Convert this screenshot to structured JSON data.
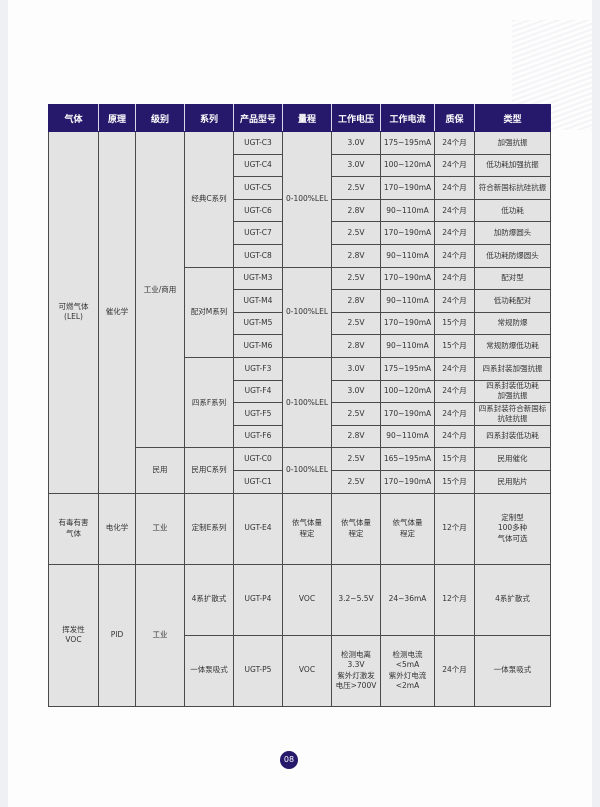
{
  "header": [
    "气体",
    "原理",
    "级别",
    "系列",
    "产品型号",
    "量程",
    "工作电压",
    "工作电流",
    "质保",
    "类型"
  ],
  "rows": [
    {
      "h": "r",
      "cells": [
        {
          "t": "可燃气体\n(LEL)",
          "rs": 16
        },
        {
          "t": "催化学",
          "rs": 16
        },
        {
          "t": "工业/商用",
          "rs": 14
        },
        {
          "t": "经典C系列",
          "rs": 6
        },
        {
          "t": "UGT-C3"
        },
        {
          "t": "0-100%LEL",
          "rs": 6
        },
        {
          "t": "3.0V"
        },
        {
          "t": "175~195mA"
        },
        {
          "t": "24个月"
        },
        {
          "t": "加强抗振"
        }
      ]
    },
    {
      "h": "r",
      "cells": [
        {
          "t": "UGT-C4"
        },
        {
          "t": "3.0V"
        },
        {
          "t": "100~120mA"
        },
        {
          "t": "24个月"
        },
        {
          "t": "低功耗加强抗振"
        }
      ]
    },
    {
      "h": "r",
      "cells": [
        {
          "t": "UGT-C5"
        },
        {
          "t": "2.5V"
        },
        {
          "t": "170~190mA"
        },
        {
          "t": "24个月"
        },
        {
          "t": "符合新国标抗硅抗振"
        }
      ]
    },
    {
      "h": "r",
      "cells": [
        {
          "t": "UGT-C6"
        },
        {
          "t": "2.8V"
        },
        {
          "t": "90~110mA"
        },
        {
          "t": "24个月"
        },
        {
          "t": "低功耗"
        }
      ]
    },
    {
      "h": "r",
      "cells": [
        {
          "t": "UGT-C7"
        },
        {
          "t": "2.5V"
        },
        {
          "t": "170~190mA"
        },
        {
          "t": "24个月"
        },
        {
          "t": "加防爆圆头"
        }
      ]
    },
    {
      "h": "r",
      "cells": [
        {
          "t": "UGT-C8"
        },
        {
          "t": "2.8V"
        },
        {
          "t": "90~110mA"
        },
        {
          "t": "24个月"
        },
        {
          "t": "低功耗防爆圆头"
        }
      ]
    },
    {
      "h": "r",
      "cells": [
        {
          "t": "配对M系列",
          "rs": 4
        },
        {
          "t": "UGT-M3"
        },
        {
          "t": "0-100%LEL",
          "rs": 4
        },
        {
          "t": "2.5V"
        },
        {
          "t": "170~190mA"
        },
        {
          "t": "24个月"
        },
        {
          "t": "配对型"
        }
      ]
    },
    {
      "h": "r",
      "cells": [
        {
          "t": "UGT-M4"
        },
        {
          "t": "2.8V"
        },
        {
          "t": "90~110mA"
        },
        {
          "t": "24个月"
        },
        {
          "t": "低功耗配对"
        }
      ]
    },
    {
      "h": "r",
      "cells": [
        {
          "t": "UGT-M5"
        },
        {
          "t": "2.5V"
        },
        {
          "t": "170~190mA"
        },
        {
          "t": "15个月"
        },
        {
          "t": "常规防爆"
        }
      ]
    },
    {
      "h": "r",
      "cells": [
        {
          "t": "UGT-M6"
        },
        {
          "t": "2.8V"
        },
        {
          "t": "90~110mA"
        },
        {
          "t": "15个月"
        },
        {
          "t": "常规防爆低功耗"
        }
      ]
    },
    {
      "h": "r",
      "cells": [
        {
          "t": "四系F系列",
          "rs": 4
        },
        {
          "t": "UGT-F3"
        },
        {
          "t": "0-100%LEL",
          "rs": 4
        },
        {
          "t": "3.0V"
        },
        {
          "t": "175~195mA"
        },
        {
          "t": "24个月"
        },
        {
          "t": "四系封装加强抗振"
        }
      ]
    },
    {
      "h": "r",
      "cells": [
        {
          "t": "UGT-F4"
        },
        {
          "t": "3.0V"
        },
        {
          "t": "100~120mA"
        },
        {
          "t": "24个月"
        },
        {
          "t": "四系封装低功耗\n加强抗振"
        }
      ]
    },
    {
      "h": "r",
      "cells": [
        {
          "t": "UGT-F5"
        },
        {
          "t": "2.5V"
        },
        {
          "t": "170~190mA"
        },
        {
          "t": "24个月"
        },
        {
          "t": "四系封装符合新国标\n抗硅抗振"
        }
      ]
    },
    {
      "h": "r",
      "cells": [
        {
          "t": "UGT-F6"
        },
        {
          "t": "2.8V"
        },
        {
          "t": "90~110mA"
        },
        {
          "t": "24个月"
        },
        {
          "t": "四系封装低功耗"
        }
      ]
    },
    {
      "h": "r",
      "cells": [
        {
          "t": "民用",
          "rs": 2
        },
        {
          "t": "民用C系列",
          "rs": 2
        },
        {
          "t": "UGT-C0"
        },
        {
          "t": "0-100%LEL",
          "rs": 2
        },
        {
          "t": "2.5V"
        },
        {
          "t": "165~195mA"
        },
        {
          "t": "15个月"
        },
        {
          "t": "民用催化"
        }
      ]
    },
    {
      "h": "r",
      "cells": [
        {
          "t": "UGT-C1"
        },
        {
          "t": "2.5V"
        },
        {
          "t": "170~190mA"
        },
        {
          "t": "15个月"
        },
        {
          "t": "民用贴片"
        }
      ]
    },
    {
      "h": "t",
      "cells": [
        {
          "t": "有毒有害\n气体"
        },
        {
          "t": "电化学"
        },
        {
          "t": "工业"
        },
        {
          "t": "定制E系列"
        },
        {
          "t": "UGT-E4"
        },
        {
          "t": "依气体量\n程定"
        },
        {
          "t": "依气体量\n程定"
        },
        {
          "t": "依气体量\n程定"
        },
        {
          "t": "12个月"
        },
        {
          "t": "定制型\n100多种\n气体可选"
        }
      ]
    },
    {
      "h": "t",
      "cells": [
        {
          "t": "挥发性\nVOC",
          "rs": 2
        },
        {
          "t": "PID",
          "rs": 2
        },
        {
          "t": "工业",
          "rs": 2
        },
        {
          "t": "4系扩散式"
        },
        {
          "t": "UGT-P4"
        },
        {
          "t": "VOC"
        },
        {
          "t": "3.2~5.5V"
        },
        {
          "t": "24~36mA"
        },
        {
          "t": "12个月"
        },
        {
          "t": "4系扩散式"
        }
      ]
    },
    {
      "h": "t",
      "cells": [
        {
          "t": "一体泵吸式"
        },
        {
          "t": "UGT-P5"
        },
        {
          "t": "VOC"
        },
        {
          "t": "检测电离\n3.3V\n紫外灯激发\n电压>700V"
        },
        {
          "t": "检测电流\n<5mA\n紫外灯电流\n<2mA"
        },
        {
          "t": "24个月"
        },
        {
          "t": "一体泵吸式"
        }
      ]
    }
  ],
  "page_number": "08",
  "colors": {
    "header_bg": "#26186a",
    "cell_bg": "#e3e3e3"
  }
}
